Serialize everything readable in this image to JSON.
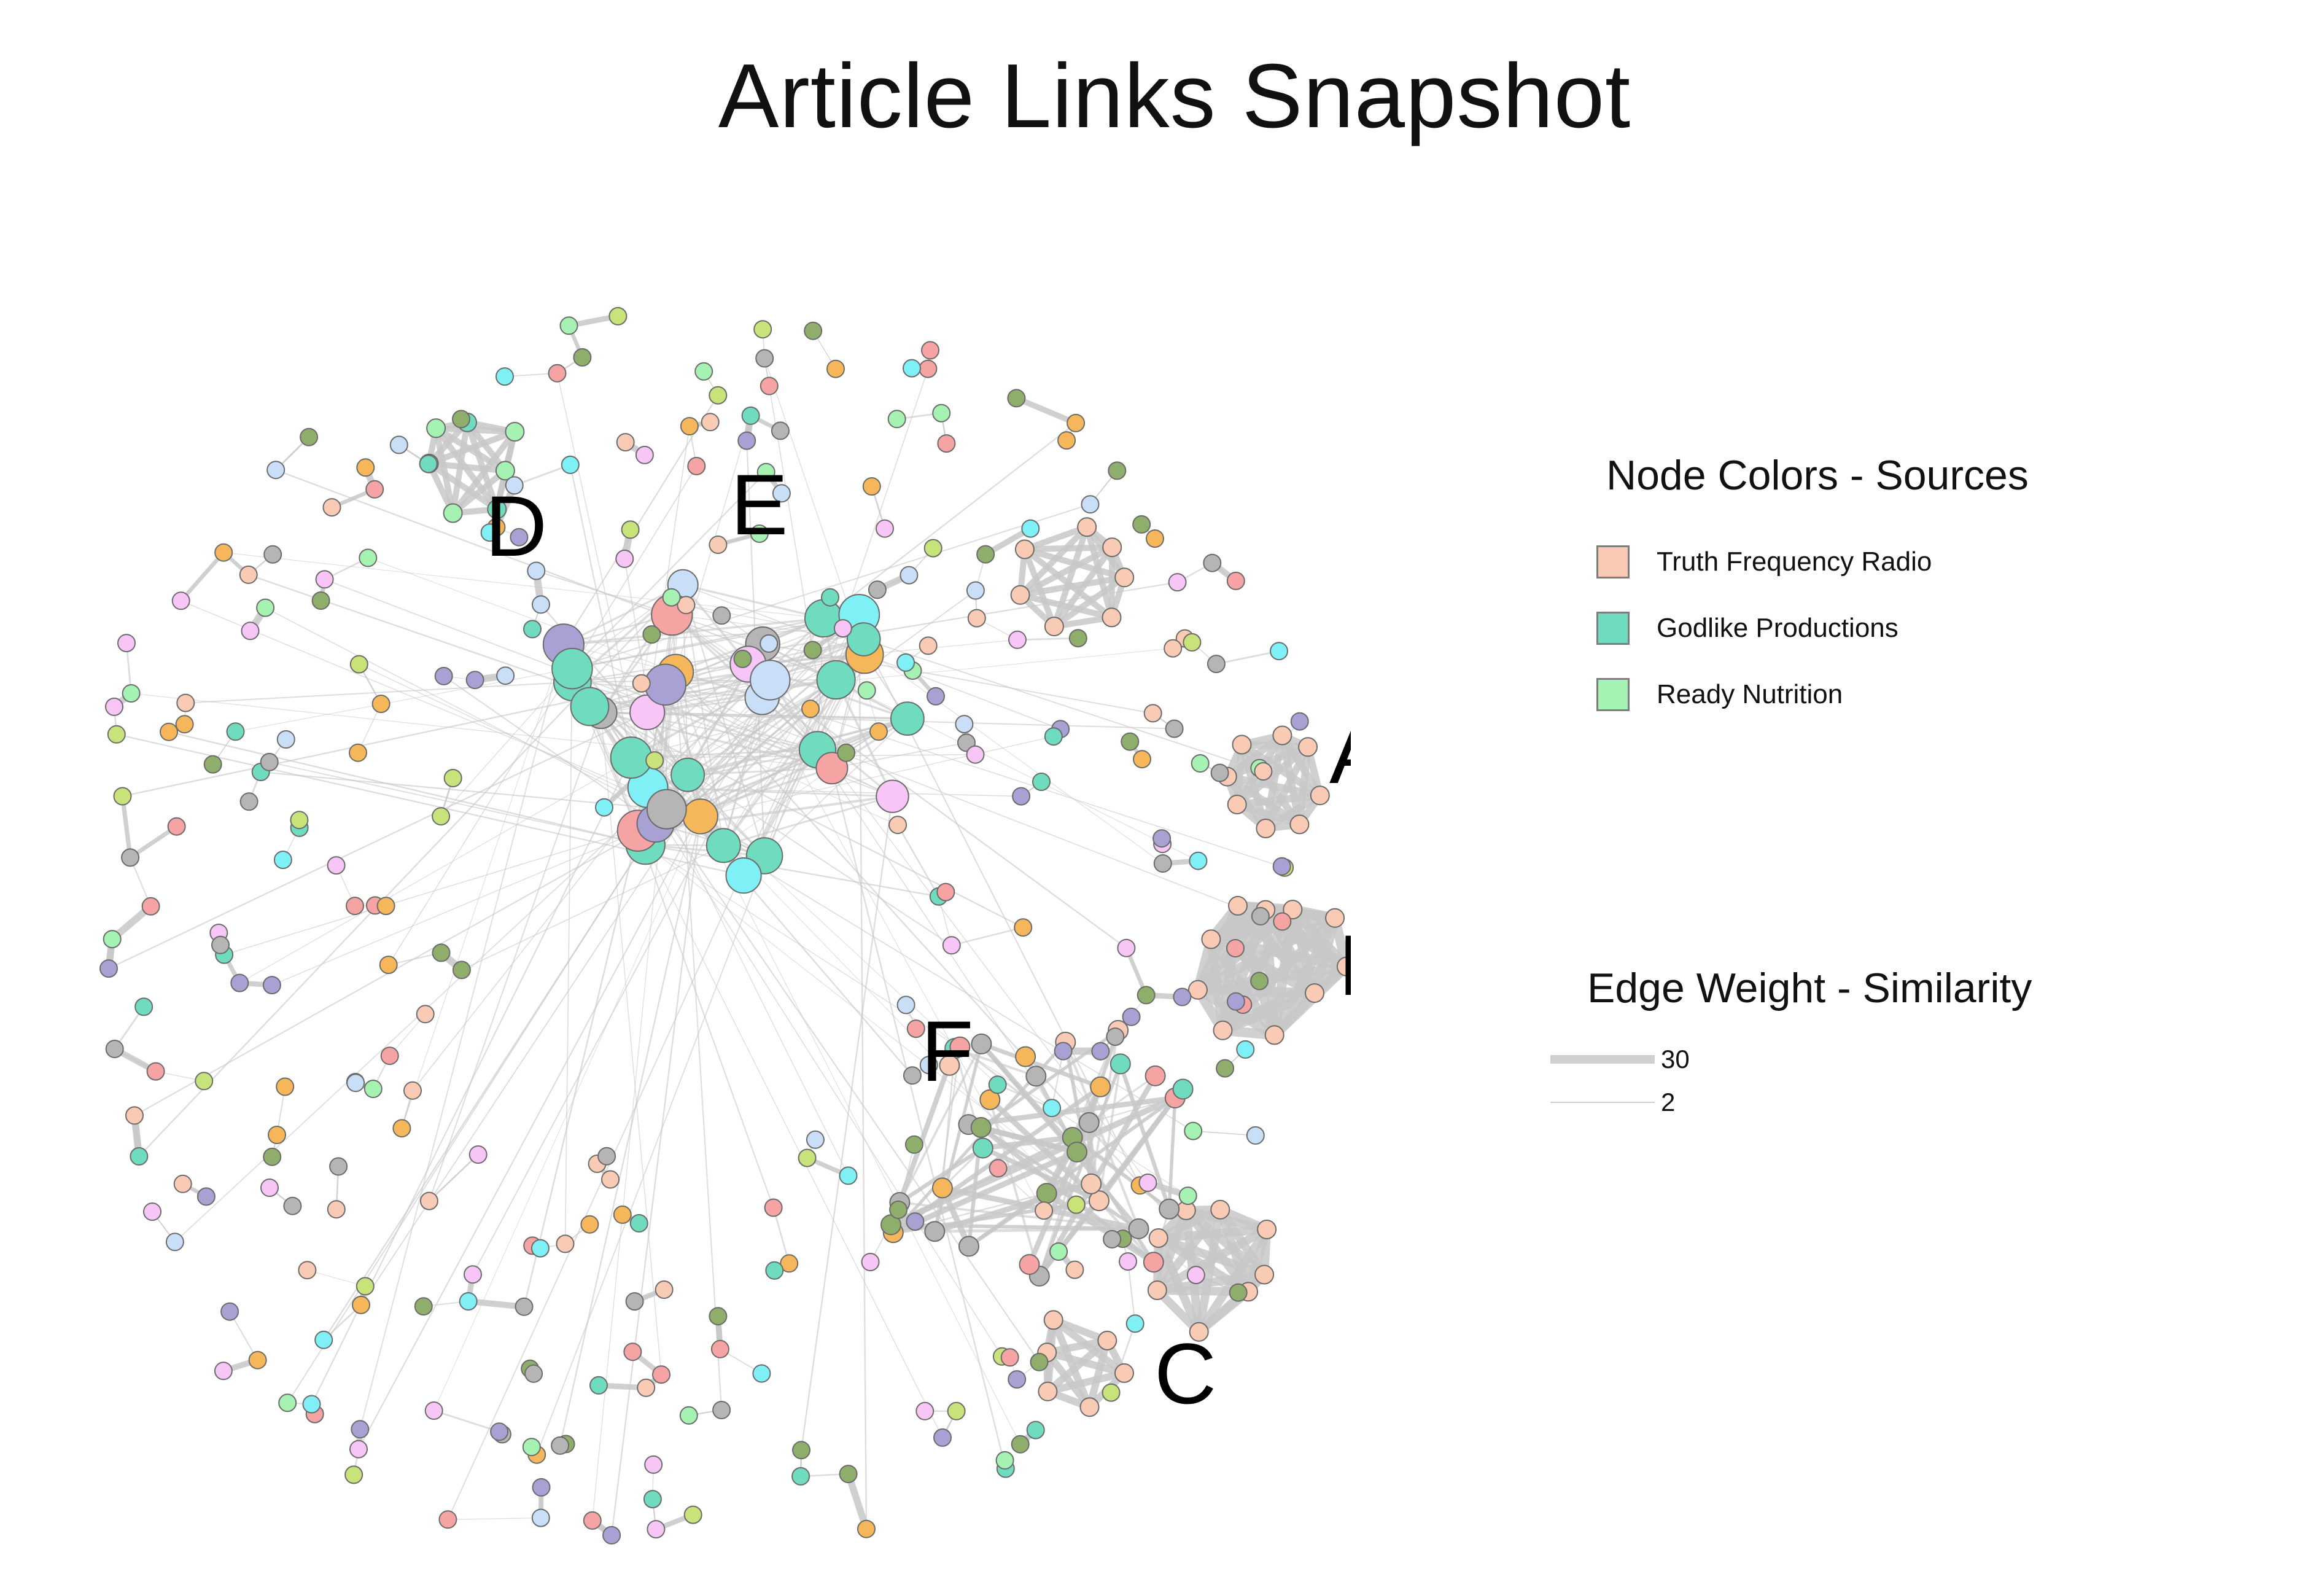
{
  "title": "Article Links Snapshot",
  "cluster_labels": [
    "A",
    "B",
    "C",
    "D",
    "E",
    "F"
  ],
  "legend_nodes": {
    "title": "Node Colors - Sources",
    "items": [
      {
        "label": "Truth Frequency Radio",
        "color": "#f9cbb5"
      },
      {
        "label": "Godlike Productions",
        "color": "#6fdcc0"
      },
      {
        "label": "Ready Nutrition",
        "color": "#a6f2b3"
      }
    ]
  },
  "legend_edges": {
    "title": "Edge Weight - Similarity",
    "items": [
      {
        "label": "30",
        "weight": 30
      },
      {
        "label": "2",
        "weight": 2
      }
    ]
  },
  "colors": {
    "edge": "#c8c8c8",
    "node_stroke": "#6b6b6b",
    "other_node_palette": [
      "#b5b5b5",
      "#f5b75a",
      "#c8e37a",
      "#7ff0f5",
      "#c9dff7",
      "#f5a3a3",
      "#f7c6f7",
      "#8fae6b",
      "#a7a1d4"
    ]
  }
}
